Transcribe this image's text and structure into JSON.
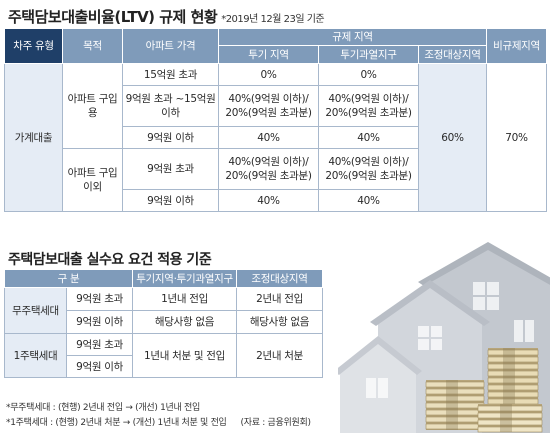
{
  "ltv": {
    "title": "주택담보대출비율(LTV) 규제 현황",
    "note": "*2019년 12월 23일 기준",
    "headers": {
      "borrower_type": "차주 유형",
      "purpose": "목적",
      "apt_price": "아파트 가격",
      "regulated_area": "규제 지역",
      "speculation_area": "투기 지역",
      "overheated_area": "투기과열지구",
      "adjusted_area": "조정대상지역",
      "non_regulated": "비규제지역"
    },
    "category": "가계대출",
    "purchase": {
      "label": "아파트 구입용",
      "rows": [
        {
          "price": "15억원 초과",
          "spec": "0%",
          "over": "0%"
        },
        {
          "price": "9억원 초과 ~15억원 이하",
          "spec": "40%(9억원 이하)/ 20%(9억원 초과분)",
          "over": "40%(9억원 이하)/ 20%(9억원 초과분)"
        },
        {
          "price": "9억원 이하",
          "spec": "40%",
          "over": "40%"
        }
      ]
    },
    "other": {
      "label": "아파트 구입 이외",
      "rows": [
        {
          "price": "9억원 초과",
          "spec": "40%(9억원 이하)/ 20%(9억원 초과분)",
          "over": "40%(9억원 이하)/ 20%(9억원 초과분)"
        },
        {
          "price": "9억원 이하",
          "spec": "40%",
          "over": "40%"
        }
      ]
    },
    "adjusted_value": "60%",
    "non_regulated_value": "70%"
  },
  "requirements": {
    "title": "주택담보대출 실수요 요건 적용 기준",
    "headers": {
      "category": "구 분",
      "speculation": "투기지역·투기과열지구",
      "adjusted": "조정대상지역"
    },
    "no_house": {
      "label": "무주택세대",
      "rows": [
        {
          "price": "9억원 초과",
          "spec": "1년내 전입",
          "adj": "2년내 전입"
        },
        {
          "price": "9억원 이하",
          "spec": "해당사항 없음",
          "adj": "해당사항 없음"
        }
      ]
    },
    "one_house": {
      "label": "1주택세대",
      "prices": [
        "9억원 초과",
        "9억원 이하"
      ],
      "spec": "1년내 처분 및 전입",
      "adj": "2년내 처분"
    }
  },
  "footnotes": {
    "line1": "*무주택세대 : (현행) 2년내 전입 → (개선) 1년내 전입",
    "line2": "*1주택세대 : (현행) 2년내 처분 → (개선) 1년내 처분 및 전입",
    "source": "(자료 : 금융위원회)"
  },
  "icons": [
    "houses-illustration",
    "money-stacks-illustration"
  ],
  "colors": {
    "header": "#7f9bba",
    "dark_header": "#1f3f68",
    "cell_tint": "#e5ecf5",
    "border": "#a8b8cc"
  }
}
